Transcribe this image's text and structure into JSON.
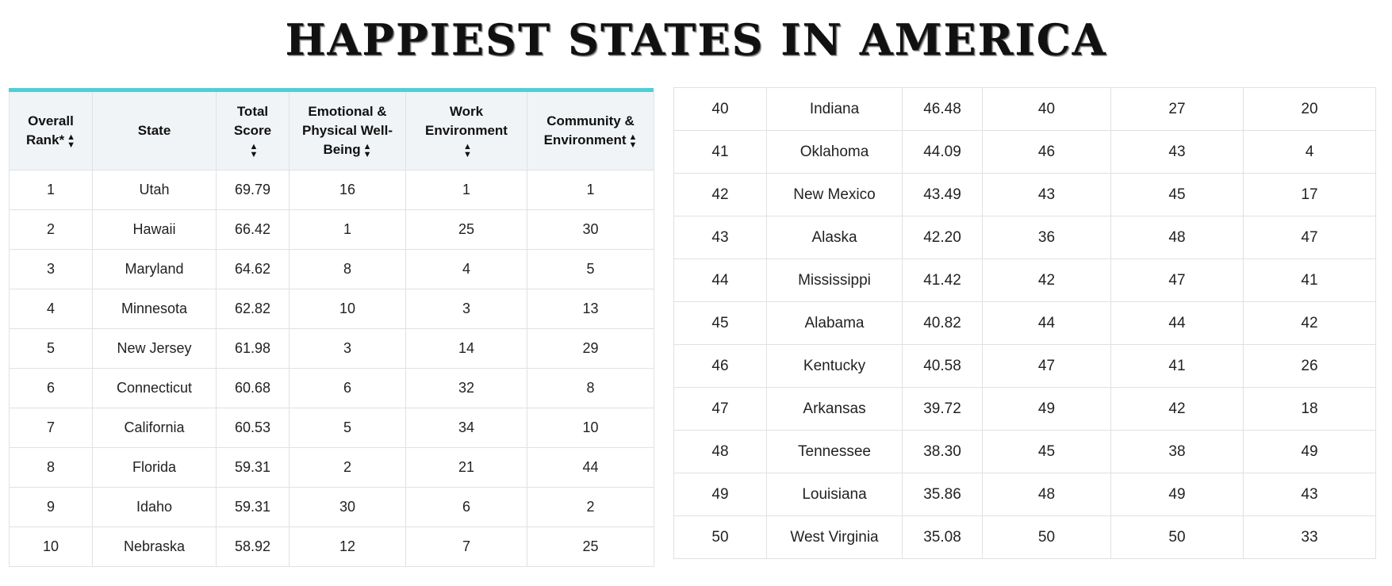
{
  "page": {
    "title": "HAPPIEST STATES IN AMERICA"
  },
  "left_table": {
    "headers": [
      {
        "label": "Overall Rank*",
        "sortable": true
      },
      {
        "label": "State",
        "sortable": false
      },
      {
        "label": "Total Score",
        "sortable": true
      },
      {
        "label": "Emotional & Physical Well-Being",
        "sortable": true
      },
      {
        "label": "Work Environment",
        "sortable": true
      },
      {
        "label": "Community & Environment",
        "sortable": true
      }
    ],
    "rows": [
      [
        "1",
        "Utah",
        "69.79",
        "16",
        "1",
        "1"
      ],
      [
        "2",
        "Hawaii",
        "66.42",
        "1",
        "25",
        "30"
      ],
      [
        "3",
        "Maryland",
        "64.62",
        "8",
        "4",
        "5"
      ],
      [
        "4",
        "Minnesota",
        "62.82",
        "10",
        "3",
        "13"
      ],
      [
        "5",
        "New Jersey",
        "61.98",
        "3",
        "14",
        "29"
      ],
      [
        "6",
        "Connecticut",
        "60.68",
        "6",
        "32",
        "8"
      ],
      [
        "7",
        "California",
        "60.53",
        "5",
        "34",
        "10"
      ],
      [
        "8",
        "Florida",
        "59.31",
        "2",
        "21",
        "44"
      ],
      [
        "9",
        "Idaho",
        "59.31",
        "30",
        "6",
        "2"
      ],
      [
        "10",
        "Nebraska",
        "58.92",
        "12",
        "7",
        "25"
      ]
    ]
  },
  "right_table": {
    "rows": [
      [
        "40",
        "Indiana",
        "46.48",
        "40",
        "27",
        "20"
      ],
      [
        "41",
        "Oklahoma",
        "44.09",
        "46",
        "43",
        "4"
      ],
      [
        "42",
        "New Mexico",
        "43.49",
        "43",
        "45",
        "17"
      ],
      [
        "43",
        "Alaska",
        "42.20",
        "36",
        "48",
        "47"
      ],
      [
        "44",
        "Mississippi",
        "41.42",
        "42",
        "47",
        "41"
      ],
      [
        "45",
        "Alabama",
        "40.82",
        "44",
        "44",
        "42"
      ],
      [
        "46",
        "Kentucky",
        "40.58",
        "47",
        "41",
        "26"
      ],
      [
        "47",
        "Arkansas",
        "39.72",
        "49",
        "42",
        "18"
      ],
      [
        "48",
        "Tennessee",
        "38.30",
        "45",
        "38",
        "49"
      ],
      [
        "49",
        "Louisiana",
        "35.86",
        "48",
        "49",
        "43"
      ],
      [
        "50",
        "West Virginia",
        "35.08",
        "50",
        "50",
        "33"
      ]
    ]
  },
  "colors": {
    "accent_bar": "#4fcfd6",
    "header_bg": "#f1f4f6",
    "border": "#e1e1e1"
  },
  "icons": {
    "sort": "sort-icon"
  }
}
